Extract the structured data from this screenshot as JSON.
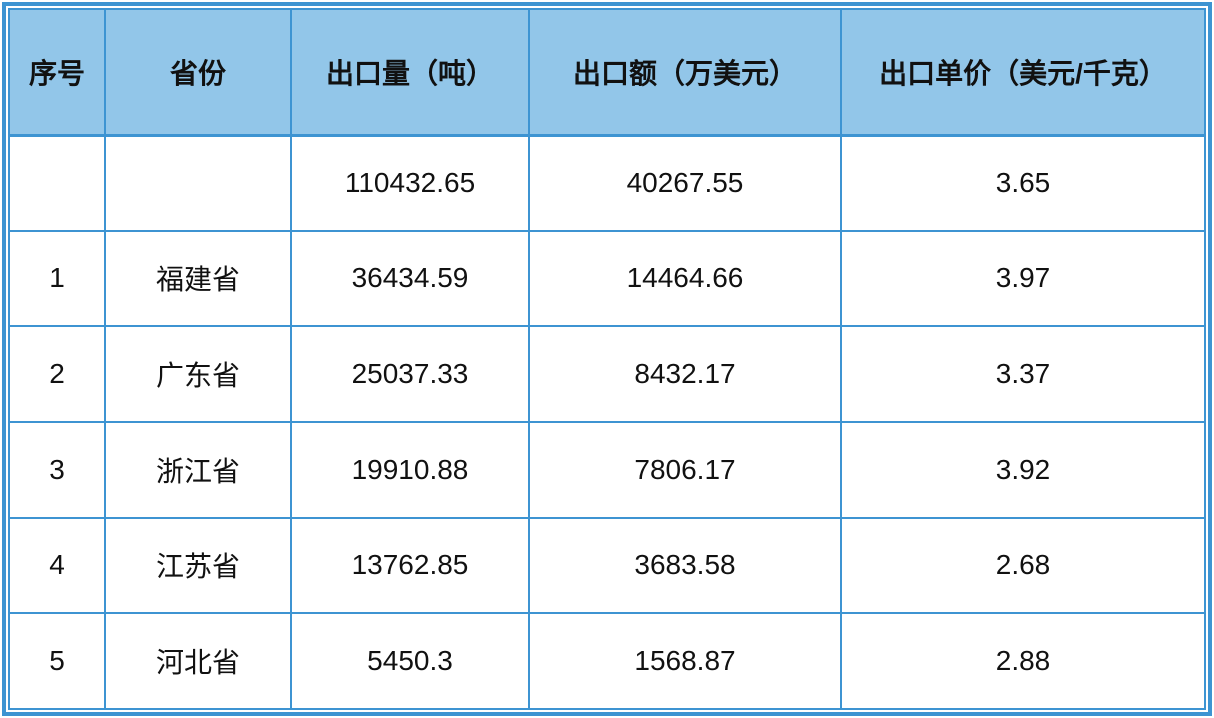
{
  "colors": {
    "line": "#3d94d2",
    "header-bg": "#92c6e9",
    "text": "#111111",
    "page-bg": "#ffffff"
  },
  "chart_data": {
    "type": "table",
    "columns": [
      "序号",
      "省份",
      "出口量（吨）",
      "出口额（万美元）",
      "出口单价（美元/千克）"
    ],
    "rows": [
      [
        "",
        "",
        "110432.65",
        "40267.55",
        "3.65"
      ],
      [
        "1",
        "福建省",
        "36434.59",
        "14464.66",
        "3.97"
      ],
      [
        "2",
        "广东省",
        "25037.33",
        "8432.17",
        "3.37"
      ],
      [
        "3",
        "浙江省",
        "19910.88",
        "7806.17",
        "3.92"
      ],
      [
        "4",
        "江苏省",
        "13762.85",
        "3683.58",
        "2.68"
      ],
      [
        "5",
        "河北省",
        "5450.3",
        "1568.87",
        "2.88"
      ]
    ]
  }
}
